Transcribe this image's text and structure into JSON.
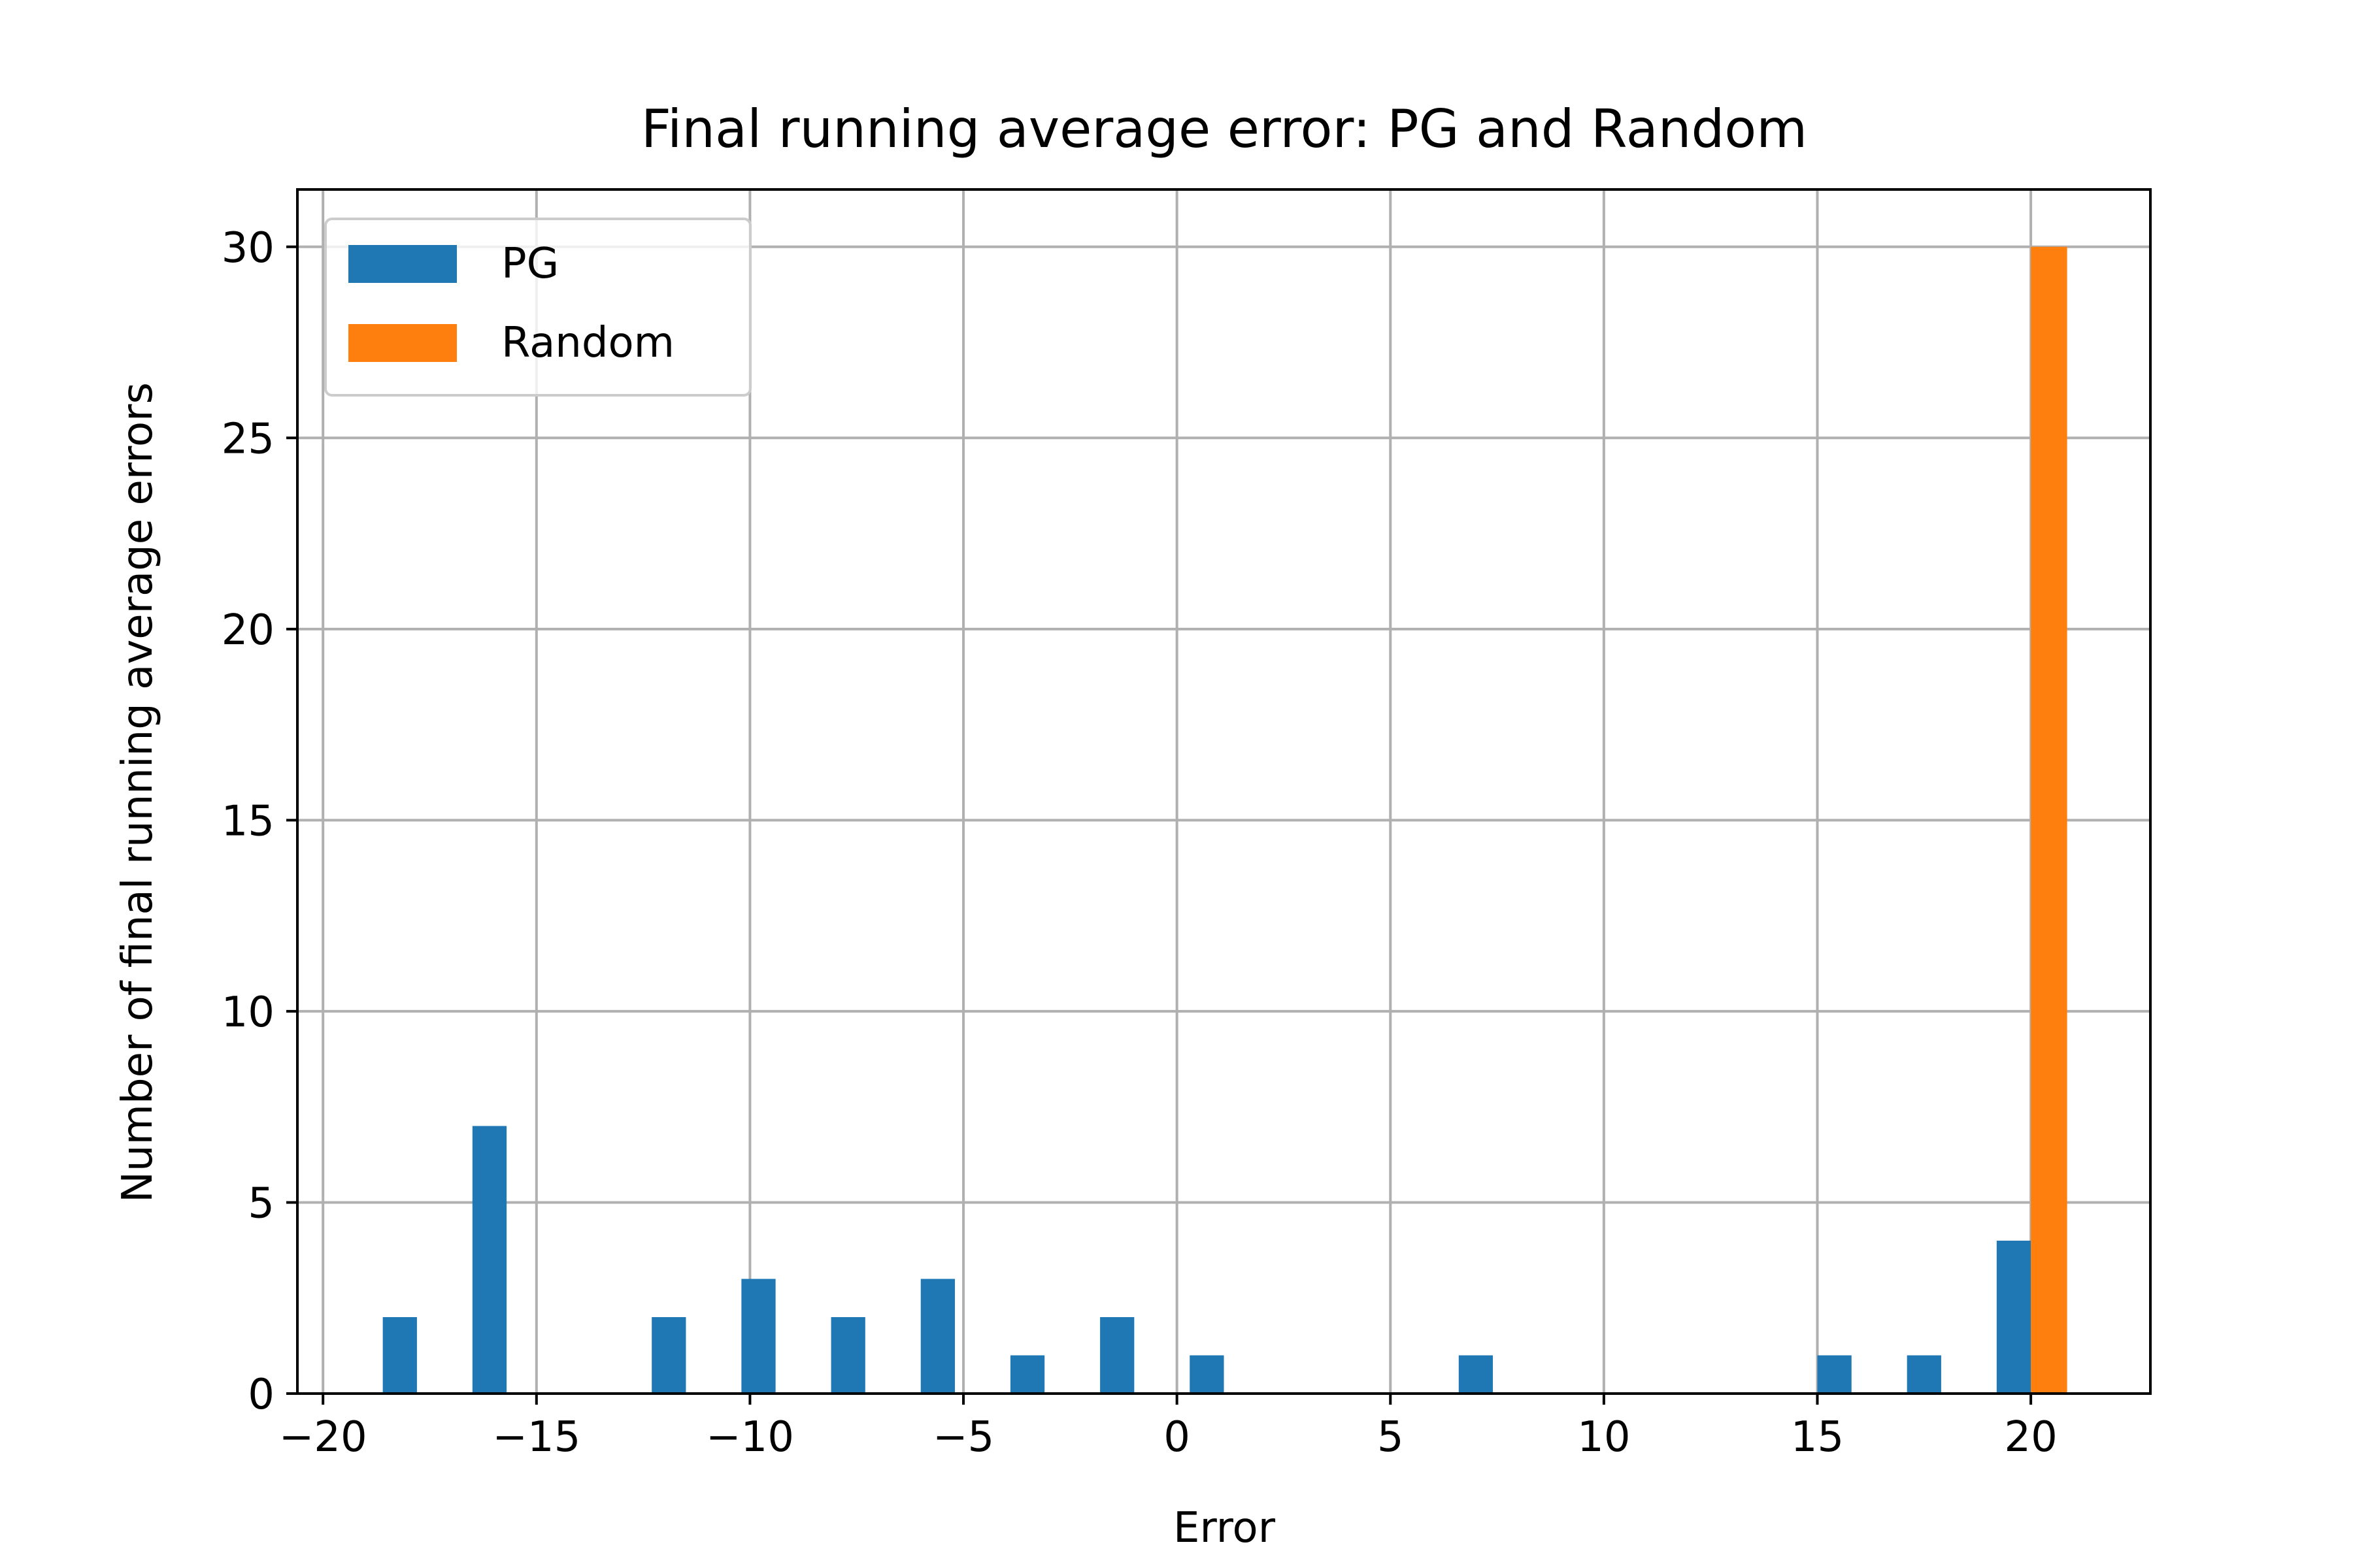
{
  "colors": {
    "pg": "#1f77b4",
    "random": "#ff7f0e",
    "grid": "#b0b0b0",
    "axis": "#000000",
    "background": "#ffffff"
  },
  "chart_data": {
    "type": "bar",
    "title": "Final running average error: PG and Random",
    "xlabel": "Error",
    "ylabel": "Number of final running average errors",
    "xlim": [
      -20.6,
      22.8
    ],
    "ylim": [
      0,
      31.5
    ],
    "xticks": [
      -20,
      -15,
      -10,
      -5,
      0,
      5,
      10,
      15,
      20
    ],
    "xtick_labels": [
      "−20",
      "−15",
      "−10",
      "−5",
      "0",
      "5",
      "10",
      "15",
      "20"
    ],
    "yticks": [
      0,
      5,
      10,
      15,
      20,
      25,
      30
    ],
    "ytick_labels": [
      "0",
      "5",
      "10",
      "15",
      "20",
      "25",
      "30"
    ],
    "grid": true,
    "legend_position": "top-left",
    "series": [
      {
        "name": "PG",
        "color_key": "pg",
        "bins": [
          {
            "x0": -18.6,
            "x1": -17.8,
            "count": 2
          },
          {
            "x0": -16.5,
            "x1": -15.7,
            "count": 7
          },
          {
            "x0": -12.3,
            "x1": -11.5,
            "count": 2
          },
          {
            "x0": -10.2,
            "x1": -9.4,
            "count": 3
          },
          {
            "x0": -8.1,
            "x1": -7.3,
            "count": 2
          },
          {
            "x0": -6.0,
            "x1": -5.2,
            "count": 3
          },
          {
            "x0": -3.9,
            "x1": -3.1,
            "count": 1
          },
          {
            "x0": -1.8,
            "x1": -1.0,
            "count": 2
          },
          {
            "x0": 0.3,
            "x1": 1.1,
            "count": 1
          },
          {
            "x0": 6.6,
            "x1": 7.4,
            "count": 1
          },
          {
            "x0": 15.0,
            "x1": 15.8,
            "count": 1
          },
          {
            "x0": 17.1,
            "x1": 17.9,
            "count": 1
          },
          {
            "x0": 19.2,
            "x1": 20.0,
            "count": 4
          }
        ]
      },
      {
        "name": "Random",
        "color_key": "random",
        "bins": [
          {
            "x0": 20.0,
            "x1": 20.85,
            "count": 30
          }
        ]
      }
    ]
  }
}
